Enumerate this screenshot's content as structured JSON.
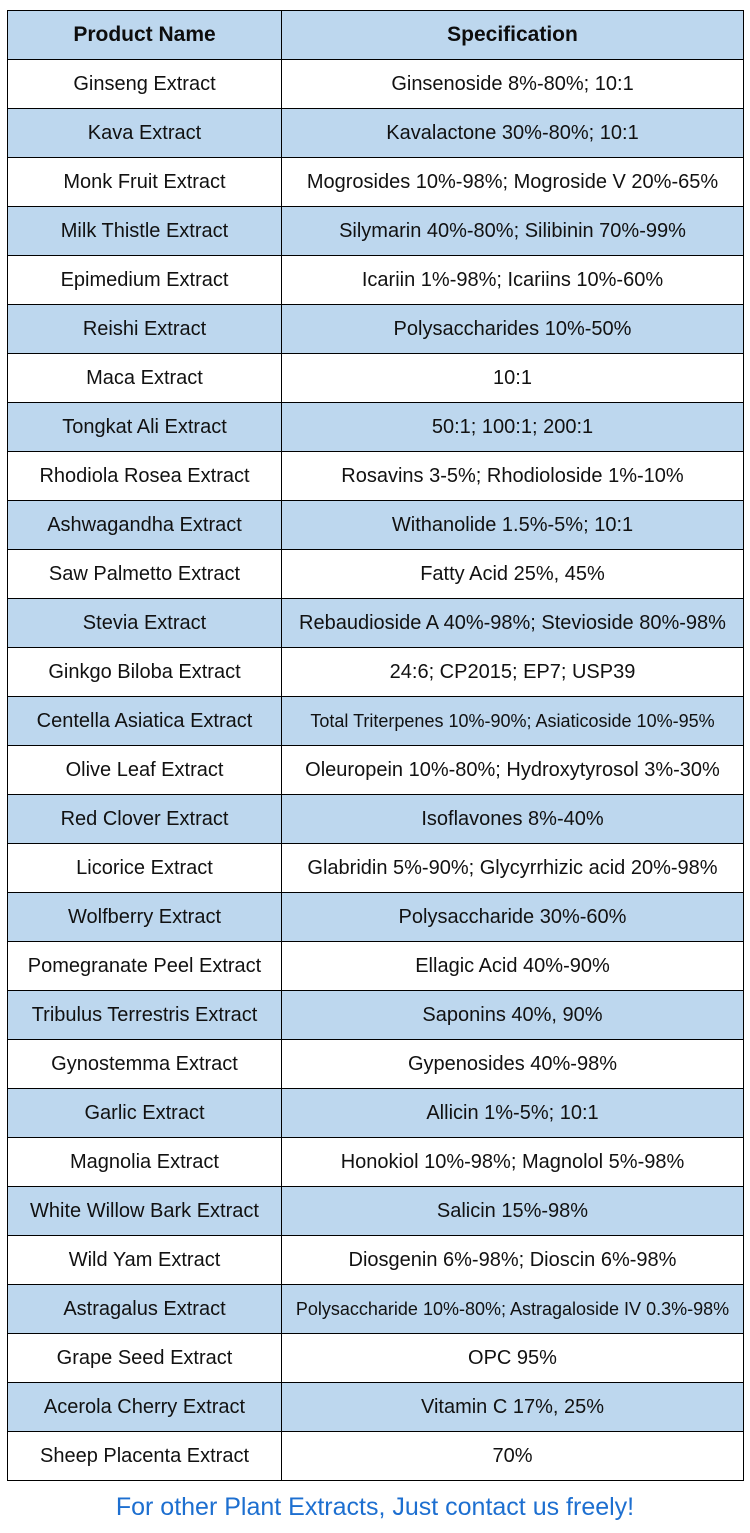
{
  "table": {
    "headers": [
      "Product Name",
      "Specification"
    ],
    "rows": [
      {
        "product": "Ginseng Extract",
        "spec": "Ginsenoside 8%-80%; 10:1"
      },
      {
        "product": "Kava Extract",
        "spec": "Kavalactone 30%-80%; 10:1"
      },
      {
        "product": "Monk Fruit Extract",
        "spec": "Mogrosides 10%-98%; Mogroside V 20%-65%"
      },
      {
        "product": "Milk Thistle Extract",
        "spec": "Silymarin 40%-80%; Silibinin 70%-99%"
      },
      {
        "product": "Epimedium Extract",
        "spec": "Icariin 1%-98%; Icariins 10%-60%"
      },
      {
        "product": "Reishi Extract",
        "spec": "Polysaccharides 10%-50%"
      },
      {
        "product": "Maca Extract",
        "spec": "10:1"
      },
      {
        "product": "Tongkat Ali Extract",
        "spec": "50:1; 100:1; 200:1"
      },
      {
        "product": "Rhodiola Rosea Extract",
        "spec": "Rosavins 3-5%; Rhodioloside 1%-10%"
      },
      {
        "product": "Ashwagandha Extract",
        "spec": "Withanolide 1.5%-5%; 10:1"
      },
      {
        "product": "Saw Palmetto Extract",
        "spec": "Fatty Acid 25%, 45%"
      },
      {
        "product": "Stevia Extract",
        "spec": "Rebaudioside A 40%-98%; Stevioside 80%-98%"
      },
      {
        "product": "Ginkgo Biloba Extract",
        "spec": "24:6; CP2015; EP7; USP39"
      },
      {
        "product": "Centella Asiatica Extract",
        "spec": "Total Triterpenes 10%-90%; Asiaticoside 10%-95%"
      },
      {
        "product": "Olive Leaf Extract",
        "spec": "Oleuropein 10%-80%; Hydroxytyrosol 3%-30%"
      },
      {
        "product": "Red Clover Extract",
        "spec": "Isoflavones 8%-40%"
      },
      {
        "product": "Licorice Extract",
        "spec": "Glabridin 5%-90%; Glycyrrhizic acid 20%-98%"
      },
      {
        "product": "Wolfberry Extract",
        "spec": "Polysaccharide 30%-60%"
      },
      {
        "product": "Pomegranate Peel Extract",
        "spec": "Ellagic Acid 40%-90%"
      },
      {
        "product": "Tribulus Terrestris Extract",
        "spec": "Saponins 40%, 90%"
      },
      {
        "product": "Gynostemma Extract",
        "spec": "Gypenosides 40%-98%"
      },
      {
        "product": "Garlic Extract",
        "spec": "Allicin 1%-5%; 10:1"
      },
      {
        "product": "Magnolia Extract",
        "spec": "Honokiol 10%-98%; Magnolol 5%-98%"
      },
      {
        "product": "White Willow Bark Extract",
        "spec": "Salicin 15%-98%"
      },
      {
        "product": "Wild Yam Extract",
        "spec": "Diosgenin 6%-98%; Dioscin 6%-98%"
      },
      {
        "product": "Astragalus Extract",
        "spec": "Polysaccharide 10%-80%; Astragaloside IV 0.3%-98%"
      },
      {
        "product": "Grape Seed Extract",
        "spec": "OPC 95%"
      },
      {
        "product": "Acerola Cherry Extract",
        "spec": "Vitamin C 17%, 25%"
      },
      {
        "product": "Sheep Placenta Extract",
        "spec": "70%"
      }
    ]
  },
  "footer": {
    "text": "For other Plant Extracts, Just contact us freely!"
  },
  "colors": {
    "header_bg": "#BDD7EE",
    "alt_row_bg": "#BDD7EE",
    "border": "#000000",
    "footer_text": "#1D6FD0",
    "body_text": "#111111"
  }
}
